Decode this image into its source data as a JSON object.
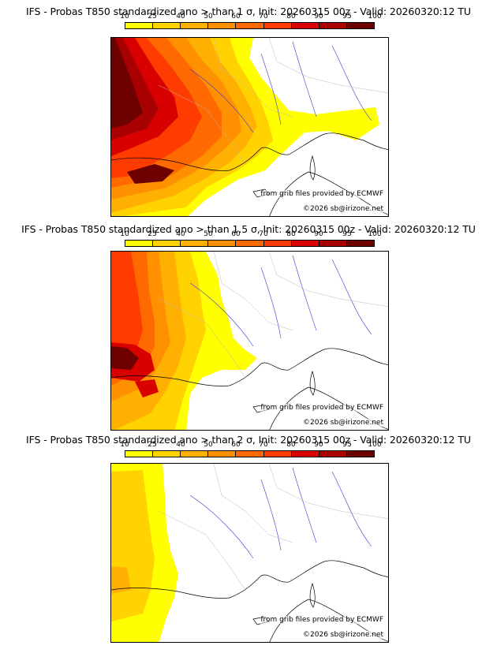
{
  "colorbar": {
    "ticks": [
      "10",
      "25",
      "40",
      "50",
      "60",
      "70",
      "80",
      "90",
      "95",
      "100"
    ],
    "colors": [
      "#ffff00",
      "#ffd200",
      "#ffb000",
      "#ff9000",
      "#ff6a00",
      "#ff3c00",
      "#d90000",
      "#a80000",
      "#6e0000"
    ]
  },
  "land_color": "#ffffff",
  "coast_color": "#000000",
  "river_color": "#3a3ad0",
  "admin_color": "#b8b8b8",
  "credits": {
    "source": "from grib files provided by ECMWF",
    "copyright": "©2026 sb@irizone.net"
  },
  "panels": [
    {
      "title": "IFS - Probas T850  standardized ano > than 1 σ, Init: 20260315 00z - Valid: 20260320:12 TU"
    },
    {
      "title": "IFS - Probas T850  standardized ano > than 1.5 σ, Init: 20260315 00z - Valid: 20260320:12 TU"
    },
    {
      "title": "IFS - Probas T850  standardized ano > than 2 σ, Init: 20260315 00z - Valid: 20260320:12 TU"
    }
  ]
}
